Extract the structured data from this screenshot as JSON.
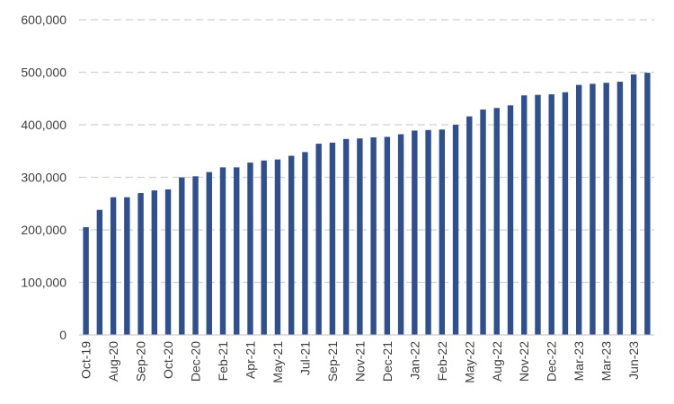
{
  "chart_data": {
    "type": "bar",
    "title": "",
    "xlabel": "",
    "ylabel": "",
    "ylim": [
      0,
      600000
    ],
    "yticks": [
      0,
      100000,
      200000,
      300000,
      400000,
      500000,
      600000
    ],
    "ytick_labels": [
      "0",
      "100,000",
      "200,000",
      "300,000",
      "400,000",
      "500,000",
      "600,000"
    ],
    "grid": "horizontal dashed",
    "bar_color": "#2F4F8F",
    "categories": [
      "Oct-19",
      "",
      "Aug-20",
      "",
      "Sep-20",
      "",
      "Oct-20",
      "",
      "Dec-20",
      "",
      "Feb-21",
      "",
      "Apr-21",
      "",
      "May-21",
      "",
      "Jul-21",
      "",
      "Sep-21",
      "",
      "Nov-21",
      "",
      "Dec-21",
      "",
      "Jan-22",
      "",
      "Feb-22",
      "",
      "May-22",
      "",
      "Aug-22",
      "",
      "Nov-22",
      "",
      "Dec-22",
      "",
      "Mar-23",
      "",
      "Mar-23",
      "",
      "Jun-23",
      ""
    ],
    "values": [
      205000,
      238000,
      262000,
      262000,
      270000,
      275000,
      277000,
      300000,
      302000,
      310000,
      319000,
      319000,
      328000,
      332000,
      334000,
      341000,
      348000,
      364000,
      366000,
      373000,
      374000,
      376000,
      377000,
      382000,
      389000,
      390000,
      391000,
      400000,
      416000,
      429000,
      432000,
      437000,
      456000,
      457000,
      458000,
      462000,
      476000,
      478000,
      480000,
      482000,
      496000,
      499000
    ]
  }
}
